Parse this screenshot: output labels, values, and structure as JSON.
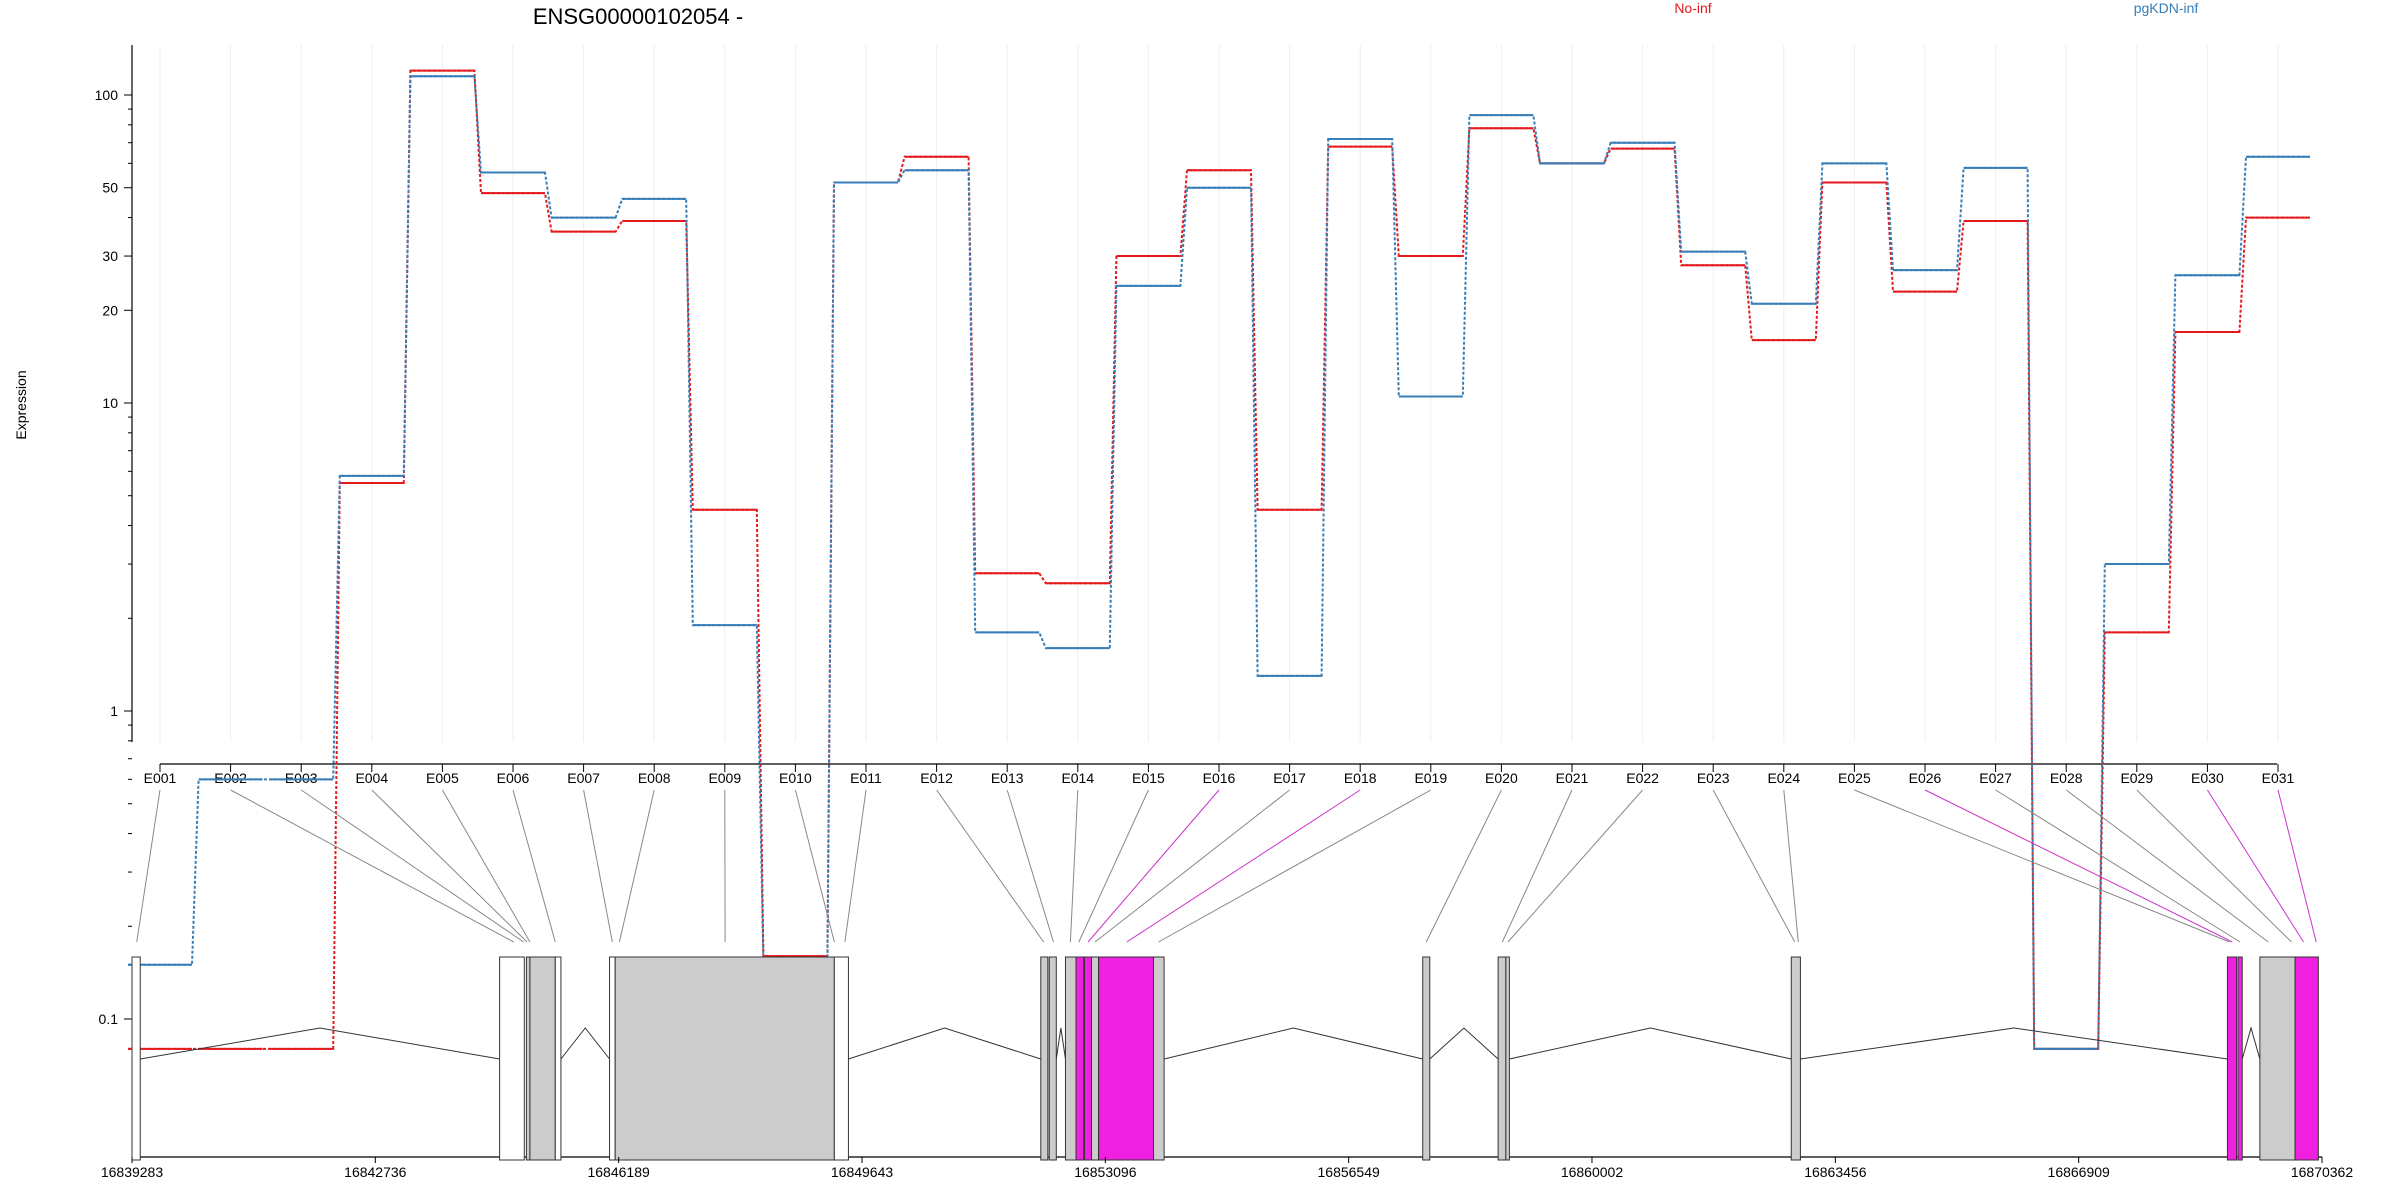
{
  "chart_data": {
    "type": "line",
    "title": "ENSG00000102054 -",
    "ylabel": "Expression",
    "y_scale": "log",
    "y_ticks": [
      0.1,
      1,
      10,
      20,
      30,
      50,
      100
    ],
    "ylim": [
      0.08,
      140
    ],
    "grid": "vertical, light",
    "legend_placement": "top",
    "categories": [
      "E001",
      "E002",
      "E003",
      "E004",
      "E005",
      "E006",
      "E007",
      "E008",
      "E009",
      "E010",
      "E011",
      "E012",
      "E013",
      "E014",
      "E015",
      "E016",
      "E017",
      "E018",
      "E019",
      "E020",
      "E021",
      "E022",
      "E023",
      "E024",
      "E025",
      "E026",
      "E027",
      "E028",
      "E029",
      "E030",
      "E031"
    ],
    "series": [
      {
        "name": "No-inf",
        "color": "#e41a1c",
        "values": [
          0.08,
          0.08,
          0.08,
          5.5,
          120,
          48,
          36,
          39,
          4.5,
          0.16,
          52,
          63,
          2.8,
          2.6,
          30,
          57,
          4.5,
          68,
          30,
          78,
          60,
          67,
          28,
          16,
          52,
          23,
          39,
          0.08,
          1.8,
          17,
          40
        ]
      },
      {
        "name": "pgKDN-inf",
        "color": "#377eb8",
        "values": [
          0.15,
          0.6,
          0.6,
          5.8,
          115,
          56,
          40,
          46,
          1.9,
          0.15,
          52,
          57,
          1.8,
          1.6,
          24,
          50,
          1.3,
          72,
          10.5,
          86,
          60,
          70,
          31,
          21,
          60,
          27,
          58,
          0.08,
          3.0,
          26,
          63
        ]
      }
    ],
    "gene_axis": {
      "ticks": [
        "16839283",
        "16842736",
        "16846189",
        "16849643",
        "16853096",
        "16856549",
        "16860002",
        "16863456",
        "16866909",
        "16870362"
      ]
    },
    "gene_model": {
      "exons": [
        {
          "start": 16839283,
          "end": 16839400,
          "fill": "white"
        },
        {
          "start": 16844500,
          "end": 16844850,
          "fill": "white"
        },
        {
          "start": 16844880,
          "end": 16844930,
          "fill": "gray"
        },
        {
          "start": 16844930,
          "end": 16845290,
          "fill": "gray"
        },
        {
          "start": 16845290,
          "end": 16845370,
          "fill": "white"
        },
        {
          "start": 16846060,
          "end": 16846140,
          "fill": "white"
        },
        {
          "start": 16846140,
          "end": 16849250,
          "fill": "gray"
        },
        {
          "start": 16849250,
          "end": 16849450,
          "fill": "white"
        },
        {
          "start": 16852180,
          "end": 16852280,
          "fill": "gray"
        },
        {
          "start": 16852300,
          "end": 16852400,
          "fill": "gray"
        },
        {
          "start": 16852530,
          "end": 16852680,
          "fill": "gray"
        },
        {
          "start": 16852680,
          "end": 16852790,
          "fill": "magenta"
        },
        {
          "start": 16852800,
          "end": 16852900,
          "fill": "magenta"
        },
        {
          "start": 16852900,
          "end": 16853000,
          "fill": "gray"
        },
        {
          "start": 16853000,
          "end": 16853780,
          "fill": "magenta"
        },
        {
          "start": 16853780,
          "end": 16853930,
          "fill": "gray"
        },
        {
          "start": 16857600,
          "end": 16857700,
          "fill": "gray"
        },
        {
          "start": 16858670,
          "end": 16858780,
          "fill": "gray"
        },
        {
          "start": 16858780,
          "end": 16858830,
          "fill": "gray"
        },
        {
          "start": 16862830,
          "end": 16862960,
          "fill": "gray"
        },
        {
          "start": 16869020,
          "end": 16869150,
          "fill": "magenta"
        },
        {
          "start": 16869170,
          "end": 16869230,
          "fill": "magenta"
        },
        {
          "start": 16869480,
          "end": 16869980,
          "fill": "gray"
        },
        {
          "start": 16869980,
          "end": 16870310,
          "fill": "magenta"
        }
      ],
      "introns": [
        [
          16839400,
          16844500
        ],
        [
          16845370,
          16846060
        ],
        [
          16849450,
          16852180
        ],
        [
          16852400,
          16852530
        ],
        [
          16853930,
          16857600
        ],
        [
          16857700,
          16858670
        ],
        [
          16858830,
          16862830
        ],
        [
          16862960,
          16869020
        ],
        [
          16869230,
          16869480
        ]
      ],
      "connectors": [
        {
          "exon": "E001",
          "pos": 16839350,
          "color": "#888888"
        },
        {
          "exon": "E002",
          "pos": 16844700,
          "color": "#888888"
        },
        {
          "exon": "E003",
          "pos": 16844840,
          "color": "#888888"
        },
        {
          "exon": "E004",
          "pos": 16844890,
          "color": "#888888"
        },
        {
          "exon": "E005",
          "pos": 16844930,
          "color": "#888888"
        },
        {
          "exon": "E006",
          "pos": 16845290,
          "color": "#888888"
        },
        {
          "exon": "E007",
          "pos": 16846100,
          "color": "#888888"
        },
        {
          "exon": "E008",
          "pos": 16846200,
          "color": "#888888"
        },
        {
          "exon": "E009",
          "pos": 16847700,
          "color": "#888888"
        },
        {
          "exon": "E010",
          "pos": 16849250,
          "color": "#888888"
        },
        {
          "exon": "E011",
          "pos": 16849400,
          "color": "#888888"
        },
        {
          "exon": "E012",
          "pos": 16852220,
          "color": "#888888"
        },
        {
          "exon": "E013",
          "pos": 16852360,
          "color": "#888888"
        },
        {
          "exon": "E014",
          "pos": 16852600,
          "color": "#888888"
        },
        {
          "exon": "E015",
          "pos": 16852720,
          "color": "#888888"
        },
        {
          "exon": "E016",
          "pos": 16852850,
          "color": "#cc33cc"
        },
        {
          "exon": "E017",
          "pos": 16852950,
          "color": "#888888"
        },
        {
          "exon": "E018",
          "pos": 16853400,
          "color": "#cc33cc"
        },
        {
          "exon": "E019",
          "pos": 16853850,
          "color": "#888888"
        },
        {
          "exon": "E020",
          "pos": 16857650,
          "color": "#888888"
        },
        {
          "exon": "E021",
          "pos": 16858730,
          "color": "#888888"
        },
        {
          "exon": "E022",
          "pos": 16858810,
          "color": "#888888"
        },
        {
          "exon": "E023",
          "pos": 16862880,
          "color": "#888888"
        },
        {
          "exon": "E024",
          "pos": 16862930,
          "color": "#888888"
        },
        {
          "exon": "E025",
          "pos": 16869050,
          "color": "#888888"
        },
        {
          "exon": "E026",
          "pos": 16869090,
          "color": "#cc33cc"
        },
        {
          "exon": "E027",
          "pos": 16869200,
          "color": "#888888"
        },
        {
          "exon": "E028",
          "pos": 16869600,
          "color": "#888888"
        },
        {
          "exon": "E029",
          "pos": 16869930,
          "color": "#888888"
        },
        {
          "exon": "E030",
          "pos": 16870100,
          "color": "#cc33cc"
        }
      ]
    }
  }
}
